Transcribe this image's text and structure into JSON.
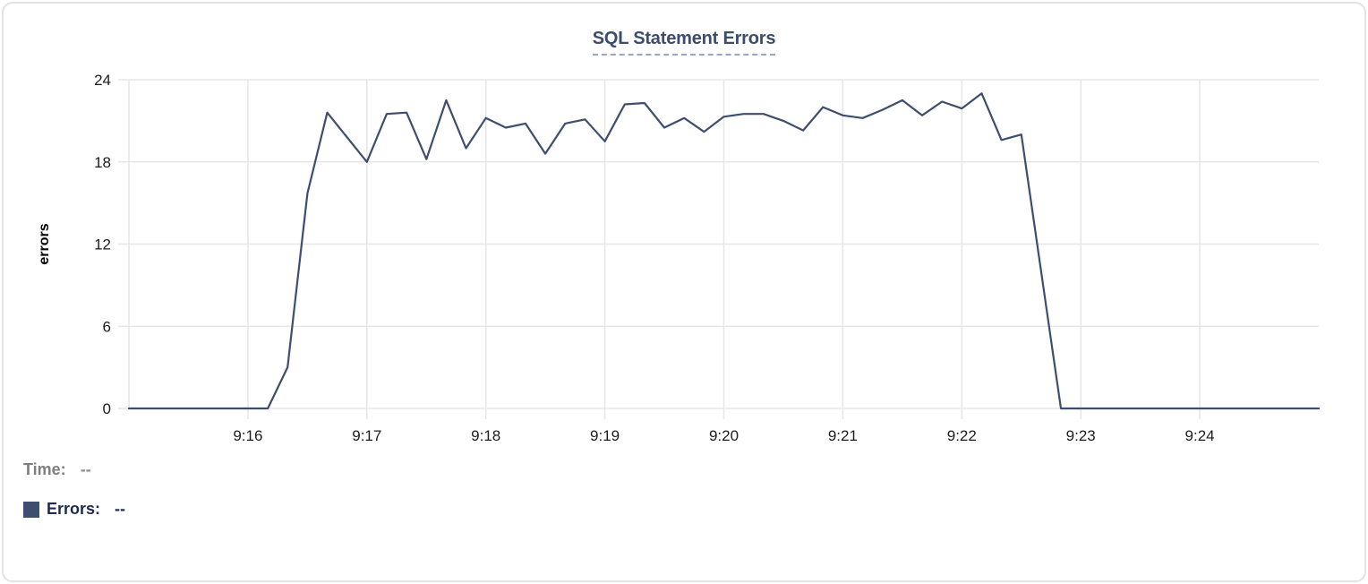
{
  "chart_data": {
    "type": "line",
    "title": "SQL Statement Errors",
    "ylabel": "errors",
    "series_name": "Errors",
    "line_color": "#3e4e6e",
    "grid_color": "#e7e7e7",
    "tick_text_color": "#1c1c1c",
    "x_start": "9:15:00",
    "x_end": "9:25:00",
    "interval_seconds": 10,
    "x_tick_labels": [
      "9:16",
      "9:17",
      "9:18",
      "9:19",
      "9:20",
      "9:21",
      "9:22",
      "9:23",
      "9:24"
    ],
    "x_tick_indices": [
      6,
      12,
      18,
      24,
      30,
      36,
      42,
      48,
      54
    ],
    "y_ticks": [
      0,
      6,
      12,
      18,
      24
    ],
    "ylim": [
      0,
      24
    ],
    "grid": true,
    "legend_position": "bottom-left",
    "values": [
      0,
      0,
      0,
      0,
      0,
      0,
      0,
      0,
      3,
      15.7,
      21.6,
      19.8,
      18,
      21.5,
      21.6,
      18.2,
      22.5,
      19,
      21.2,
      20.5,
      20.8,
      18.6,
      20.8,
      21.1,
      19.5,
      22.2,
      22.3,
      20.5,
      21.2,
      20.2,
      21.3,
      21.5,
      21.5,
      21.0,
      20.3,
      22.0,
      21.4,
      21.2,
      21.8,
      22.5,
      21.4,
      22.4,
      21.9,
      23.0,
      19.6,
      20.0,
      10,
      0,
      0,
      0,
      0,
      0,
      0,
      0,
      0,
      0,
      0,
      0,
      0,
      0,
      0
    ]
  },
  "tooltip_readout": {
    "time_label": "Time:",
    "time_value": "--",
    "errors_label": "Errors:",
    "errors_value": "--"
  }
}
